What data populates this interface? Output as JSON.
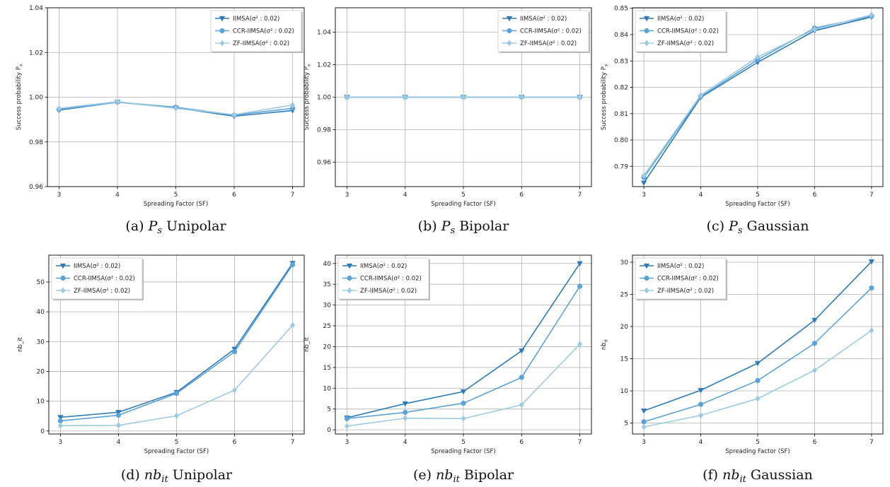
{
  "figure": {
    "colors": {
      "IIMSA": "#2e7ab6",
      "CCR": "#5ba3d6",
      "ZF": "#9ecae1"
    },
    "legend_labels": [
      "IIMSA(σ² : 0.02)",
      "CCR-IIMSA(σ² : 0.02)",
      "ZF-IIMSA(σ² : 0.02)"
    ]
  },
  "chart_data": [
    {
      "id": "a",
      "type": "line",
      "caption": {
        "prefix": "(a) ",
        "var": "P",
        "sub": "s",
        "suffix": " Unipolar"
      },
      "xlabel": "Spreading Factor (SF)",
      "ylabel": "Success probability P",
      "ylabel_sub": "s",
      "x": [
        3,
        4,
        5,
        6,
        7
      ],
      "xlim": [
        2.8,
        7.2
      ],
      "ylim": [
        0.96,
        1.04
      ],
      "yticks": [
        0.96,
        0.98,
        1.0,
        1.02,
        1.04
      ],
      "ytick_labels": [
        "0.96",
        "0.98",
        "1.00",
        "1.02",
        "1.04"
      ],
      "legend": "top-right",
      "series": [
        {
          "name": "IIMSA(σ² : 0.02)",
          "values": [
            0.9942,
            0.9978,
            0.9952,
            0.9915,
            0.994
          ]
        },
        {
          "name": "CCR-IIMSA(σ² : 0.02)",
          "values": [
            0.9945,
            0.9978,
            0.9955,
            0.992,
            0.995
          ]
        },
        {
          "name": "ZF-IIMSA(σ² : 0.02)",
          "values": [
            0.995,
            0.998,
            0.995,
            0.9922,
            0.9965
          ]
        }
      ]
    },
    {
      "id": "b",
      "type": "line",
      "caption": {
        "prefix": "(b) ",
        "var": "P",
        "sub": "s",
        "suffix": " Bipolar"
      },
      "xlabel": "Spreading Factor (SF)",
      "ylabel": "Success probability P",
      "ylabel_sub": "s",
      "x": [
        3,
        4,
        5,
        6,
        7
      ],
      "xlim": [
        2.8,
        7.2
      ],
      "ylim": [
        0.945,
        1.055
      ],
      "yticks": [
        0.96,
        0.98,
        1.0,
        1.02,
        1.04
      ],
      "ytick_labels": [
        "0.96",
        "0.98",
        "1.00",
        "1.02",
        "1.04"
      ],
      "legend": "top-right",
      "series": [
        {
          "name": "IIMSA(σ² : 0.02)",
          "values": [
            1.0,
            1.0,
            1.0,
            1.0,
            1.0
          ]
        },
        {
          "name": "CCR-IIMSA(σ² : 0.02)",
          "values": [
            1.0,
            1.0,
            1.0,
            1.0,
            1.0
          ]
        },
        {
          "name": "ZF-IIMSA(σ² : 0.02)",
          "values": [
            1.0,
            1.0,
            1.0,
            1.0,
            1.0
          ]
        }
      ]
    },
    {
      "id": "c",
      "type": "line",
      "caption": {
        "prefix": "(c) ",
        "var": "P",
        "sub": "s",
        "suffix": " Gaussian"
      },
      "xlabel": "Spreading Factor (SF)",
      "ylabel": "Success probability P",
      "ylabel_sub": "s",
      "x": [
        3,
        4,
        5,
        6,
        7
      ],
      "xlim": [
        2.8,
        7.2
      ],
      "ylim": [
        0.7823,
        0.8502
      ],
      "yticks": [
        0.79,
        0.8,
        0.81,
        0.82,
        0.83,
        0.84,
        0.85
      ],
      "ytick_labels": [
        "0.79",
        "0.80",
        "0.81",
        "0.82",
        "0.83",
        "0.84",
        "0.85"
      ],
      "legend": "top-left",
      "series": [
        {
          "name": "IIMSA(σ² : 0.02)",
          "values": [
            0.7837,
            0.8162,
            0.8295,
            0.8415,
            0.8467
          ]
        },
        {
          "name": "CCR-IIMSA(σ² : 0.02)",
          "values": [
            0.7858,
            0.8165,
            0.8305,
            0.8425,
            0.847
          ]
        },
        {
          "name": "ZF-IIMSA(σ² : 0.02)",
          "values": [
            0.7865,
            0.817,
            0.8315,
            0.842,
            0.8475
          ]
        }
      ]
    },
    {
      "id": "d",
      "type": "line",
      "caption": {
        "prefix": "(d) ",
        "var": "nb",
        "sub": "it",
        "suffix": " Unipolar"
      },
      "xlabel": "Spreading Factor (SF)",
      "ylabel": "nb_it",
      "ylabel_sub": "",
      "x": [
        3,
        4,
        5,
        6,
        7
      ],
      "xlim": [
        2.8,
        7.2
      ],
      "ylim": [
        -1,
        59
      ],
      "yticks": [
        0,
        10,
        20,
        30,
        40,
        50
      ],
      "ytick_labels": [
        "0",
        "10",
        "20",
        "30",
        "40",
        "50"
      ],
      "legend": "top-left",
      "series": [
        {
          "name": "IIMSA(σ² : 0.02)",
          "values": [
            4.6,
            6.3,
            13.0,
            27.5,
            56.3
          ]
        },
        {
          "name": "CCR-IIMSA(σ² : 0.02)",
          "values": [
            3.4,
            5.3,
            12.6,
            26.6,
            55.8
          ]
        },
        {
          "name": "ZF-IIMSA(σ² : 0.02)",
          "values": [
            1.8,
            1.9,
            5.1,
            13.7,
            35.5
          ]
        }
      ]
    },
    {
      "id": "e",
      "type": "line",
      "caption": {
        "prefix": "(e) ",
        "var": "nb",
        "sub": "it",
        "suffix": " Bipolar"
      },
      "xlabel": "Spreading Factor (SF)",
      "ylabel": "nb_it",
      "ylabel_sub": "",
      "x": [
        3,
        4,
        5,
        6,
        7
      ],
      "xlim": [
        2.8,
        7.2
      ],
      "ylim": [
        -1,
        42
      ],
      "yticks": [
        0,
        5,
        10,
        15,
        20,
        25,
        30,
        35,
        40
      ],
      "ytick_labels": [
        "0",
        "5",
        "10",
        "15",
        "20",
        "25",
        "30",
        "35",
        "40"
      ],
      "legend": "top-left",
      "series": [
        {
          "name": "IIMSA(σ² : 0.02)",
          "values": [
            2.9,
            6.3,
            9.2,
            19.0,
            40.0
          ]
        },
        {
          "name": "CCR-IIMSA(σ² : 0.02)",
          "values": [
            2.7,
            4.2,
            6.4,
            12.6,
            34.5
          ]
        },
        {
          "name": "ZF-IIMSA(σ² : 0.02)",
          "values": [
            0.9,
            2.8,
            2.7,
            6.0,
            20.6
          ]
        }
      ]
    },
    {
      "id": "f",
      "type": "line",
      "caption": {
        "prefix": "(f) ",
        "var": "nb",
        "sub": "it",
        "suffix": " Gaussian"
      },
      "xlabel": "Spreading Factor (SF)",
      "ylabel": "nb",
      "ylabel_sub": "it",
      "x": [
        3,
        4,
        5,
        6,
        7
      ],
      "xlim": [
        2.8,
        7.2
      ],
      "ylim": [
        3.3,
        31.1
      ],
      "yticks": [
        5,
        10,
        15,
        20,
        25,
        30
      ],
      "ytick_labels": [
        "5",
        "10",
        "15",
        "20",
        "25",
        "30"
      ],
      "legend": "top-left",
      "series": [
        {
          "name": "IIMSA(σ² : 0.02)",
          "values": [
            6.9,
            10.1,
            14.3,
            21.0,
            30.1
          ]
        },
        {
          "name": "CCR-IIMSA(σ² : 0.02)",
          "values": [
            5.2,
            7.9,
            11.6,
            17.4,
            26.0
          ]
        },
        {
          "name": "ZF-IIMSA(σ² : 0.02)",
          "values": [
            4.4,
            6.2,
            8.8,
            13.2,
            19.4
          ]
        }
      ]
    }
  ]
}
